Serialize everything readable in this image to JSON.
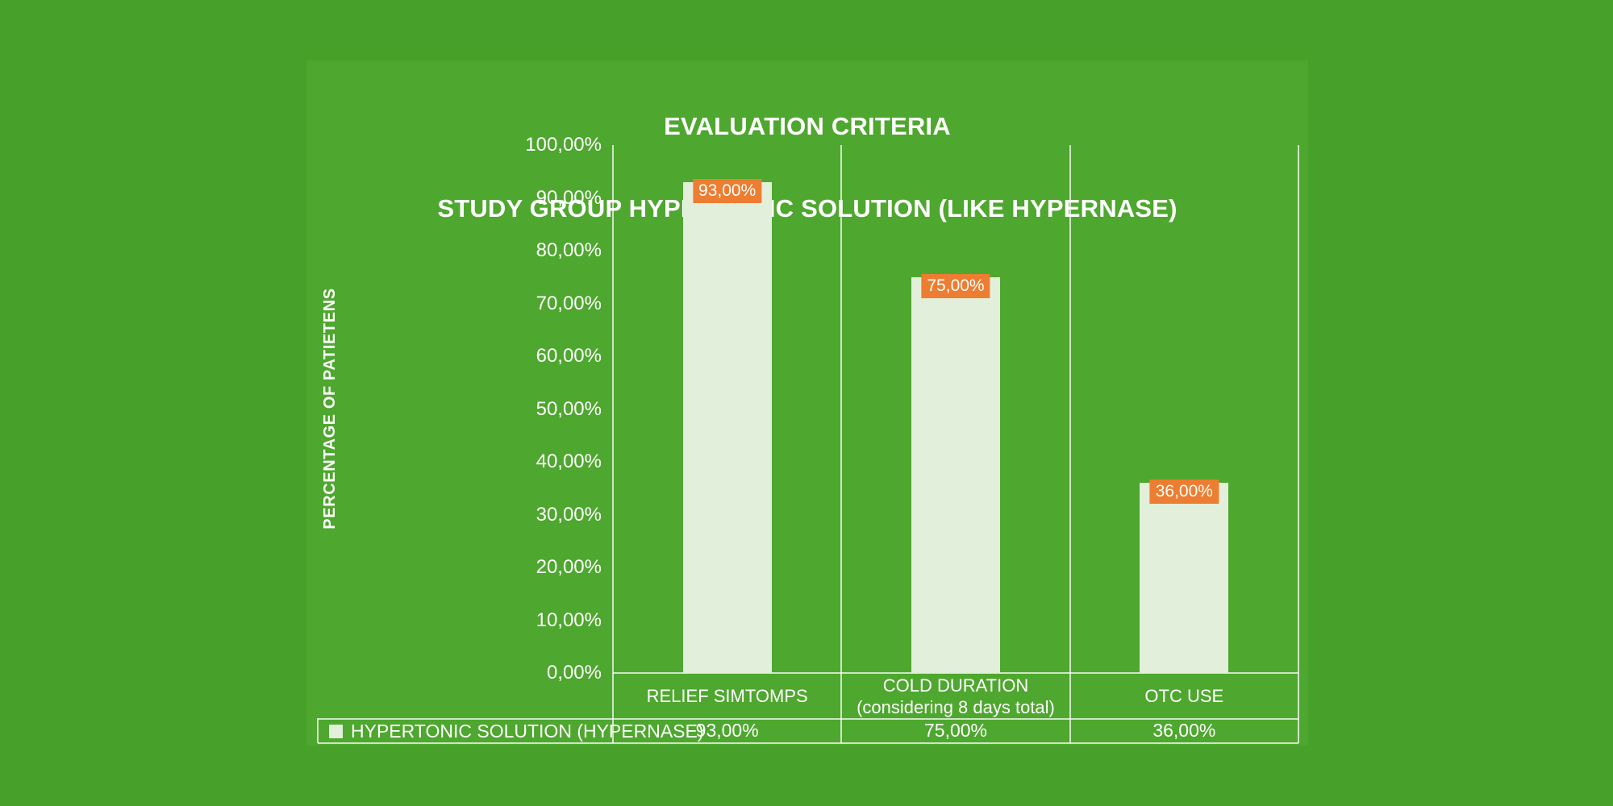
{
  "colors": {
    "page_bg": "#47a029",
    "chart_bg": "#4ea72e",
    "bar_fill": "#e2efda",
    "data_label_bg": "#ed7d31",
    "text": "#ffffff",
    "grid_line": "rgba(255,255,255,0.72)"
  },
  "chart_data": {
    "type": "bar",
    "title": "EVALUATION CRITERIA STUDY GROUP HYPERTONIC SOLUTION (LIKE HYPERNASE)",
    "title_lines": [
      "EVALUATION CRITERIA",
      "STUDY GROUP HYPERTONIC SOLUTION (LIKE HYPERNASE)"
    ],
    "ylabel": "PERCENTAGE OF PATIETENS",
    "xlabel": "",
    "categories": [
      "RELIEF SIMTOMPS",
      "COLD DURATION (considering 8 days total)",
      "OTC USE"
    ],
    "category_lines": [
      [
        "RELIEF SIMTOMPS"
      ],
      [
        "COLD DURATION",
        "(considering 8 days total)"
      ],
      [
        "OTC USE"
      ]
    ],
    "series": [
      {
        "name": "HYPERTONIC SOLUTION (HYPERNASE)",
        "values": [
          93,
          75,
          36
        ],
        "labels": [
          "93,00%",
          "75,00%",
          "36,00%"
        ]
      }
    ],
    "ylim": [
      0,
      100
    ],
    "ytick_step": 10,
    "yticks": [
      {
        "value": 100,
        "label": "100,00%"
      },
      {
        "value": 90,
        "label": "90,00%"
      },
      {
        "value": 80,
        "label": "80,00%"
      },
      {
        "value": 70,
        "label": "70,00%"
      },
      {
        "value": 60,
        "label": "60,00%"
      },
      {
        "value": 50,
        "label": "50,00%"
      },
      {
        "value": 40,
        "label": "40,00%"
      },
      {
        "value": 30,
        "label": "30,00%"
      },
      {
        "value": 20,
        "label": "20,00%"
      },
      {
        "value": 10,
        "label": "10,00%"
      },
      {
        "value": 0,
        "label": "0,00%"
      }
    ],
    "grid": "vertical-category-separators-only",
    "legend_position": "bottom-data-table"
  }
}
